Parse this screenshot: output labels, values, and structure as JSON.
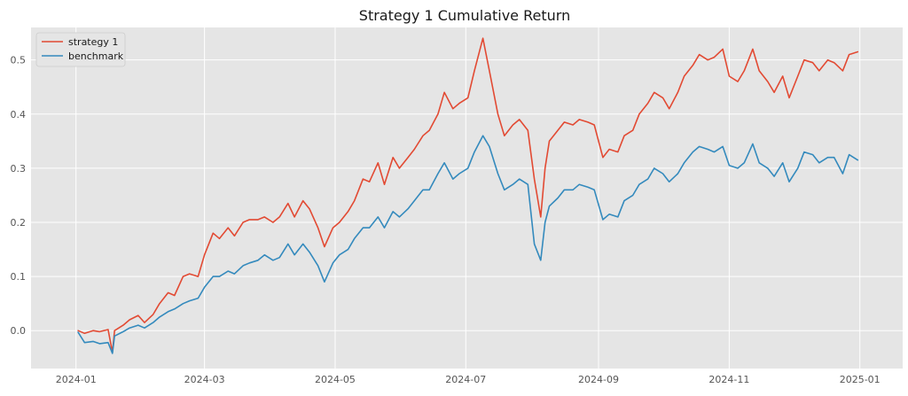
{
  "chart_data": {
    "type": "line",
    "title": "Strategy 1 Cumulative Return",
    "xlabel": "",
    "ylabel": "",
    "x_range": [
      "2023-12-11",
      "2025-01-21"
    ],
    "ylim": [
      -0.07,
      0.56
    ],
    "x_ticks": [
      "2024-01",
      "2024-03",
      "2024-05",
      "2024-07",
      "2024-09",
      "2024-11",
      "2025-01"
    ],
    "y_ticks": [
      0.0,
      0.1,
      0.2,
      0.3,
      0.4,
      0.5
    ],
    "y_tick_labels": [
      "0.0",
      "0.1",
      "0.2",
      "0.3",
      "0.4",
      "0.5"
    ],
    "grid": true,
    "legend_position": "top-left",
    "series": [
      {
        "name": "strategy 1",
        "color": "#E24A33",
        "x": [
          "2024-01-02",
          "2024-01-05",
          "2024-01-09",
          "2024-01-12",
          "2024-01-16",
          "2024-01-18",
          "2024-01-19",
          "2024-01-23",
          "2024-01-26",
          "2024-01-30",
          "2024-02-02",
          "2024-02-06",
          "2024-02-09",
          "2024-02-13",
          "2024-02-16",
          "2024-02-20",
          "2024-02-23",
          "2024-02-27",
          "2024-03-01",
          "2024-03-05",
          "2024-03-08",
          "2024-03-12",
          "2024-03-15",
          "2024-03-19",
          "2024-03-22",
          "2024-03-26",
          "2024-03-29",
          "2024-04-02",
          "2024-04-05",
          "2024-04-09",
          "2024-04-12",
          "2024-04-16",
          "2024-04-19",
          "2024-04-23",
          "2024-04-26",
          "2024-04-30",
          "2024-05-03",
          "2024-05-07",
          "2024-05-10",
          "2024-05-14",
          "2024-05-17",
          "2024-05-21",
          "2024-05-24",
          "2024-05-28",
          "2024-05-31",
          "2024-06-04",
          "2024-06-07",
          "2024-06-11",
          "2024-06-14",
          "2024-06-18",
          "2024-06-21",
          "2024-06-25",
          "2024-06-28",
          "2024-07-02",
          "2024-07-05",
          "2024-07-09",
          "2024-07-12",
          "2024-07-16",
          "2024-07-19",
          "2024-07-23",
          "2024-07-26",
          "2024-07-30",
          "2024-08-02",
          "2024-08-05",
          "2024-08-07",
          "2024-08-09",
          "2024-08-13",
          "2024-08-16",
          "2024-08-20",
          "2024-08-23",
          "2024-08-27",
          "2024-08-30",
          "2024-09-03",
          "2024-09-06",
          "2024-09-10",
          "2024-09-13",
          "2024-09-17",
          "2024-09-20",
          "2024-09-24",
          "2024-09-27",
          "2024-10-01",
          "2024-10-04",
          "2024-10-08",
          "2024-10-11",
          "2024-10-15",
          "2024-10-18",
          "2024-10-22",
          "2024-10-25",
          "2024-10-29",
          "2024-11-01",
          "2024-11-05",
          "2024-11-08",
          "2024-11-12",
          "2024-11-15",
          "2024-11-19",
          "2024-11-22",
          "2024-11-26",
          "2024-11-29",
          "2024-12-03",
          "2024-12-06",
          "2024-12-10",
          "2024-12-13",
          "2024-12-17",
          "2024-12-20",
          "2024-12-24",
          "2024-12-27",
          "2024-12-31"
        ],
        "values": [
          0.0,
          -0.005,
          0.0,
          -0.002,
          0.002,
          -0.04,
          0.0,
          0.01,
          0.02,
          0.028,
          0.015,
          0.03,
          0.05,
          0.07,
          0.065,
          0.1,
          0.105,
          0.1,
          0.14,
          0.18,
          0.17,
          0.19,
          0.175,
          0.2,
          0.205,
          0.205,
          0.21,
          0.2,
          0.21,
          0.235,
          0.21,
          0.24,
          0.225,
          0.19,
          0.155,
          0.19,
          0.2,
          0.22,
          0.24,
          0.28,
          0.275,
          0.31,
          0.27,
          0.32,
          0.3,
          0.32,
          0.335,
          0.36,
          0.37,
          0.4,
          0.44,
          0.41,
          0.42,
          0.43,
          0.48,
          0.54,
          0.48,
          0.4,
          0.36,
          0.38,
          0.39,
          0.37,
          0.28,
          0.21,
          0.3,
          0.35,
          0.37,
          0.385,
          0.38,
          0.39,
          0.385,
          0.38,
          0.32,
          0.335,
          0.33,
          0.36,
          0.37,
          0.4,
          0.42,
          0.44,
          0.43,
          0.41,
          0.44,
          0.47,
          0.49,
          0.51,
          0.5,
          0.505,
          0.52,
          0.47,
          0.46,
          0.48,
          0.52,
          0.48,
          0.46,
          0.44,
          0.47,
          0.43,
          0.47,
          0.5,
          0.495,
          0.48,
          0.5,
          0.495,
          0.48,
          0.51,
          0.515
        ]
      },
      {
        "name": "benchmark",
        "color": "#348ABD",
        "x": [
          "2024-01-02",
          "2024-01-05",
          "2024-01-09",
          "2024-01-12",
          "2024-01-16",
          "2024-01-18",
          "2024-01-19",
          "2024-01-23",
          "2024-01-26",
          "2024-01-30",
          "2024-02-02",
          "2024-02-06",
          "2024-02-09",
          "2024-02-13",
          "2024-02-16",
          "2024-02-20",
          "2024-02-23",
          "2024-02-27",
          "2024-03-01",
          "2024-03-05",
          "2024-03-08",
          "2024-03-12",
          "2024-03-15",
          "2024-03-19",
          "2024-03-22",
          "2024-03-26",
          "2024-03-29",
          "2024-04-02",
          "2024-04-05",
          "2024-04-09",
          "2024-04-12",
          "2024-04-16",
          "2024-04-19",
          "2024-04-23",
          "2024-04-26",
          "2024-04-30",
          "2024-05-03",
          "2024-05-07",
          "2024-05-10",
          "2024-05-14",
          "2024-05-17",
          "2024-05-21",
          "2024-05-24",
          "2024-05-28",
          "2024-05-31",
          "2024-06-04",
          "2024-06-07",
          "2024-06-11",
          "2024-06-14",
          "2024-06-18",
          "2024-06-21",
          "2024-06-25",
          "2024-06-28",
          "2024-07-02",
          "2024-07-05",
          "2024-07-09",
          "2024-07-12",
          "2024-07-16",
          "2024-07-19",
          "2024-07-23",
          "2024-07-26",
          "2024-07-30",
          "2024-08-02",
          "2024-08-05",
          "2024-08-07",
          "2024-08-09",
          "2024-08-13",
          "2024-08-16",
          "2024-08-20",
          "2024-08-23",
          "2024-08-27",
          "2024-08-30",
          "2024-09-03",
          "2024-09-06",
          "2024-09-10",
          "2024-09-13",
          "2024-09-17",
          "2024-09-20",
          "2024-09-24",
          "2024-09-27",
          "2024-10-01",
          "2024-10-04",
          "2024-10-08",
          "2024-10-11",
          "2024-10-15",
          "2024-10-18",
          "2024-10-22",
          "2024-10-25",
          "2024-10-29",
          "2024-11-01",
          "2024-11-05",
          "2024-11-08",
          "2024-11-12",
          "2024-11-15",
          "2024-11-19",
          "2024-11-22",
          "2024-11-26",
          "2024-11-29",
          "2024-12-03",
          "2024-12-06",
          "2024-12-10",
          "2024-12-13",
          "2024-12-17",
          "2024-12-20",
          "2024-12-24",
          "2024-12-27",
          "2024-12-31"
        ],
        "values": [
          -0.003,
          -0.022,
          -0.02,
          -0.024,
          -0.022,
          -0.042,
          -0.01,
          -0.002,
          0.005,
          0.01,
          0.005,
          0.015,
          0.025,
          0.035,
          0.04,
          0.05,
          0.055,
          0.06,
          0.08,
          0.1,
          0.1,
          0.11,
          0.105,
          0.12,
          0.125,
          0.13,
          0.14,
          0.13,
          0.135,
          0.16,
          0.14,
          0.16,
          0.145,
          0.12,
          0.09,
          0.125,
          0.14,
          0.15,
          0.17,
          0.19,
          0.19,
          0.21,
          0.19,
          0.22,
          0.21,
          0.225,
          0.24,
          0.26,
          0.26,
          0.29,
          0.31,
          0.28,
          0.29,
          0.3,
          0.33,
          0.36,
          0.34,
          0.29,
          0.26,
          0.27,
          0.28,
          0.27,
          0.16,
          0.13,
          0.2,
          0.23,
          0.245,
          0.26,
          0.26,
          0.27,
          0.265,
          0.26,
          0.205,
          0.215,
          0.21,
          0.24,
          0.25,
          0.27,
          0.28,
          0.3,
          0.29,
          0.275,
          0.29,
          0.31,
          0.33,
          0.34,
          0.335,
          0.33,
          0.34,
          0.305,
          0.3,
          0.31,
          0.345,
          0.31,
          0.3,
          0.285,
          0.31,
          0.275,
          0.3,
          0.33,
          0.325,
          0.31,
          0.32,
          0.32,
          0.29,
          0.325,
          0.315
        ]
      }
    ]
  }
}
